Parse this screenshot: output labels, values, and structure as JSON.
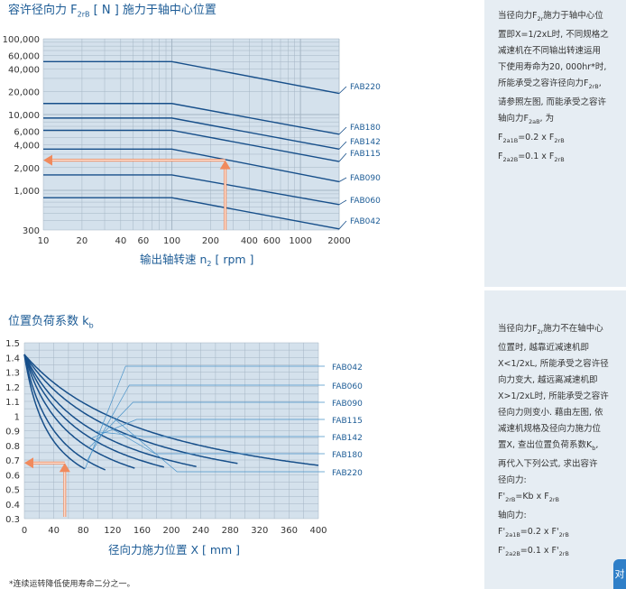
{
  "top": {
    "title_prefix": "容许径向力 F",
    "title_sub": "2rB",
    "title_suffix": " [ N ]  施力于轴中心位置",
    "xlabel_main": "输出轴转速 n",
    "xlabel_sub": "2",
    "xlabel_tail": " [ rpm ]",
    "note_lines": [
      {
        "t": "当径向力F",
        "s": "2r",
        "u": "施力于轴中心位"
      },
      {
        "t": "置即X=1/2xL时, 不同规格之"
      },
      {
        "t": "减速机在不同输出转速运用"
      },
      {
        "t": "下使用寿命为20, 000hr*时,"
      },
      {
        "t": "所能承受之容许径向力F",
        "s": "2rB",
        "u": ","
      },
      {
        "t": "请参照左图, 而能承受之容许"
      },
      {
        "t": "轴向力F",
        "s": "2aB",
        "u": ", 为"
      },
      {
        "t": "F",
        "s": "2a1B",
        "u": "=0.2 x F",
        "s2": "2rB"
      },
      {
        "t": "F",
        "s": "2a2B",
        "u": "=0.1 x F",
        "s2": "2rB"
      }
    ]
  },
  "bottom": {
    "title_prefix": "位置负荷系数 k",
    "title_sub": "b",
    "xlabel": "径向力施力位置 X [ mm ]",
    "note_lines": [
      {
        "t": "当径向力F",
        "s": "2r",
        "u": "施力不在轴中心"
      },
      {
        "t": "位置时, 越靠近减速机即"
      },
      {
        "t": "X<1/2xL, 所能承受之容许径"
      },
      {
        "t": "向力变大, 越远离减速机即"
      },
      {
        "t": "X>1/2xL时, 所能承受之容许"
      },
      {
        "t": "径向力则变小. 藉由左图, 依"
      },
      {
        "t": "减速机规格及径向力施力位"
      },
      {
        "t": "置X, 查出位置负荷系数K",
        "s": "b",
        "u": ","
      },
      {
        "t": "再代入下列公式, 求出容许"
      },
      {
        "t": "径向力:"
      },
      {
        "t": "F'",
        "s": "2rB",
        "u": "=Kb x F",
        "s2": "2rB"
      },
      {
        "t": "轴向力:"
      },
      {
        "t": "F'",
        "s": "2a1B",
        "u": "=0.2 x F'",
        "s2": "2rB"
      },
      {
        "t": "F'",
        "s": "2a2B",
        "u": "=0.1 x F'",
        "s2": "2rB"
      }
    ]
  },
  "footnote": "*连续运转降低使用寿命二分之一。",
  "corner_char": "对",
  "colors": {
    "accent": "#1d5c96",
    "curve": "#174f8a",
    "plot_bg": "#d4e1ec",
    "grid": "#a4b5c4",
    "arrow": "#f08a5d"
  },
  "chart_data": [
    {
      "type": "line",
      "xscale": "log",
      "yscale": "log",
      "xlim": [
        10,
        2000
      ],
      "ylim": [
        300,
        100000
      ],
      "x_ticks": [
        10,
        20,
        40,
        60,
        100,
        200,
        400,
        600,
        1000,
        2000
      ],
      "x_tick_labels": [
        "10",
        "20",
        "40",
        "60",
        "100",
        "200",
        "400",
        "600",
        "1000",
        "2000"
      ],
      "y_ticks": [
        300,
        1000,
        2000,
        4000,
        6000,
        10000,
        20000,
        40000,
        60000,
        100000
      ],
      "y_tick_labels": [
        "300",
        "1,000",
        "2,000",
        "4,000",
        "6,000",
        "10,000",
        "20,000",
        "40,000",
        "60,000",
        "100,000"
      ],
      "grid": true,
      "series": [
        {
          "name": "FAB220",
          "x": [
            10,
            100,
            2000
          ],
          "y": [
            50000,
            50000,
            19000
          ]
        },
        {
          "name": "FAB180",
          "x": [
            10,
            100,
            2000
          ],
          "y": [
            14000,
            14000,
            5500
          ]
        },
        {
          "name": "FAB142",
          "x": [
            10,
            100,
            2000
          ],
          "y": [
            9000,
            9000,
            3500
          ]
        },
        {
          "name": "FAB115",
          "x": [
            10,
            100,
            2000
          ],
          "y": [
            6200,
            6200,
            2400
          ]
        },
        {
          "name": "FAB090",
          "x": [
            10,
            100,
            2000
          ],
          "y": [
            3500,
            3500,
            1300
          ]
        },
        {
          "name": "FAB060",
          "x": [
            10,
            100,
            2000
          ],
          "y": [
            1600,
            1600,
            650
          ]
        },
        {
          "name": "FAB042",
          "x": [
            10,
            100,
            2000
          ],
          "y": [
            800,
            800,
            310
          ]
        }
      ],
      "reading_arrow": {
        "x": 260,
        "y": 2500
      }
    },
    {
      "type": "line",
      "xlim": [
        0,
        400
      ],
      "ylim": [
        0.3,
        1.5
      ],
      "x_ticks": [
        0,
        40,
        80,
        120,
        160,
        200,
        240,
        280,
        320,
        360,
        400
      ],
      "y_ticks": [
        0.3,
        0.4,
        0.5,
        0.6,
        0.7,
        0.8,
        0.9,
        1.0,
        1.1,
        1.2,
        1.3,
        1.4,
        1.5
      ],
      "y_tick_labels": [
        "0.3",
        "0.4",
        "0.5",
        "0.6",
        "0.7",
        "0.8",
        "0.9",
        "1",
        "1.1",
        "1.2",
        "1.3",
        "1.4",
        "1.5"
      ],
      "grid": true,
      "series": [
        {
          "name": "FAB042",
          "k": 0.028,
          "x_end": 82,
          "label_x": 150
        },
        {
          "name": "FAB060",
          "k": 0.0215,
          "x_end": 110,
          "label_x": 155
        },
        {
          "name": "FAB090",
          "k": 0.015,
          "x_end": 150,
          "label_x": 160
        },
        {
          "name": "FAB115",
          "k": 0.0115,
          "x_end": 190,
          "label_x": 165
        },
        {
          "name": "FAB142",
          "k": 0.0092,
          "x_end": 235,
          "label_x": 175
        },
        {
          "name": "FAB180",
          "k": 0.0068,
          "x_end": 290,
          "label_x": 190
        },
        {
          "name": "FAB220",
          "k": 0.0052,
          "x_end": 400,
          "label_x": 220
        }
      ],
      "curve_model": "y = 0.3 + 1.12 / (1 + k * x)",
      "reading_arrow": {
        "x": 55,
        "y": 0.68
      }
    }
  ]
}
